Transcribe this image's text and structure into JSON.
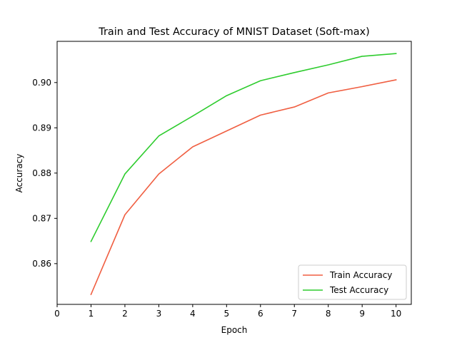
{
  "chart_data": {
    "type": "line",
    "title": "Train and Test Accuracy of MNIST Dataset (Soft-max)",
    "xlabel": "Epoch",
    "ylabel": "Accuracy",
    "xlim": [
      0,
      10.45
    ],
    "ylim": [
      0.851,
      0.9091
    ],
    "xticks": [
      0,
      1,
      2,
      3,
      4,
      5,
      6,
      7,
      8,
      9,
      10
    ],
    "xtick_labels": [
      "0",
      "1",
      "2",
      "3",
      "4",
      "5",
      "6",
      "7",
      "8",
      "9",
      "10"
    ],
    "yticks": [
      0.86,
      0.87,
      0.88,
      0.89,
      0.9
    ],
    "ytick_labels": [
      "0.86",
      "0.87",
      "0.88",
      "0.89",
      "0.90"
    ],
    "grid": false,
    "legend_position": "lower-right",
    "x": [
      1,
      2,
      3,
      4,
      5,
      6,
      7,
      8,
      9,
      10
    ],
    "series": [
      {
        "name": "Train Accuracy",
        "color": "#f05f42",
        "values": [
          0.8532,
          0.8708,
          0.8798,
          0.8858,
          0.8893,
          0.8928,
          0.8946,
          0.8977,
          0.8991,
          0.9006
        ]
      },
      {
        "name": "Test Accuracy",
        "color": "#2ecc2e",
        "values": [
          0.8649,
          0.8798,
          0.8882,
          0.8926,
          0.8971,
          0.9004,
          0.9022,
          0.9039,
          0.9058,
          0.9064
        ]
      }
    ]
  }
}
